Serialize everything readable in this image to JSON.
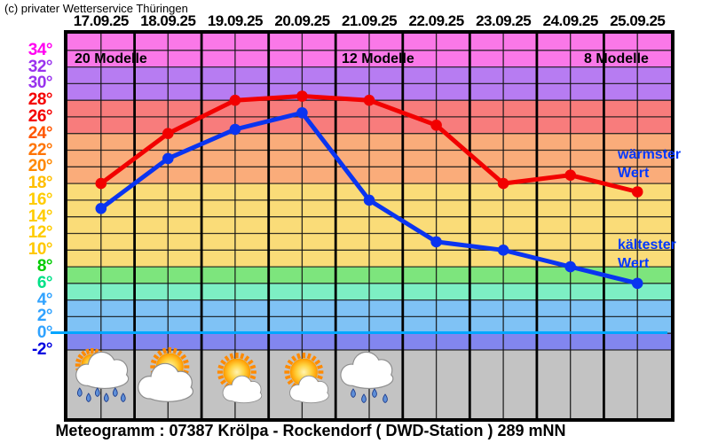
{
  "copyright": "(c) privater Wetterservice Thüringen",
  "caption": "Meteogramm : 07387 Krölpa - Rockendorf ( DWD-Station ) 289 mNN",
  "header": {
    "dates": [
      "17.09.25",
      "18.09.25",
      "19.09.25",
      "20.09.25",
      "21.09.25",
      "22.09.25",
      "23.09.25",
      "24.09.25",
      "25.09.25"
    ]
  },
  "annotations": {
    "models": [
      {
        "label": "20 Modelle",
        "x": 8
      },
      {
        "label": "12 Modelle",
        "x": 309
      },
      {
        "label": "8 Modelle",
        "x": 582
      }
    ],
    "warmest_label": {
      "line1": "wärmster",
      "line2": "Wert"
    },
    "coldest_label": {
      "line1": "kältester",
      "line2": "Wert"
    },
    "label_color": "#0038FF"
  },
  "chart_data": {
    "type": "line",
    "categories": [
      "17.09.25",
      "18.09.25",
      "19.09.25",
      "20.09.25",
      "21.09.25",
      "22.09.25",
      "23.09.25",
      "24.09.25",
      "25.09.25"
    ],
    "series": [
      {
        "name": "wärmster Wert",
        "color": "#F20000",
        "values": [
          18,
          24,
          28,
          28.5,
          28,
          25,
          18,
          19,
          17
        ]
      },
      {
        "name": "kältester Wert",
        "color": "#0A34F0",
        "values": [
          15,
          21,
          24.5,
          26.5,
          16,
          11,
          10,
          8,
          6
        ]
      }
    ],
    "ylim": [
      -2,
      36
    ],
    "y_tick_step": 2,
    "grid": true,
    "y_ticks": [
      {
        "value": 34,
        "color": "#FF00F0"
      },
      {
        "value": 32,
        "color": "#9933EE"
      },
      {
        "value": 30,
        "color": "#9933EE"
      },
      {
        "value": 28,
        "color": "#F50000"
      },
      {
        "value": 26,
        "color": "#F50000"
      },
      {
        "value": 24,
        "color": "#FF5500"
      },
      {
        "value": 22,
        "color": "#FF7300"
      },
      {
        "value": 20,
        "color": "#FF8800"
      },
      {
        "value": 18,
        "color": "#FFBE00"
      },
      {
        "value": 16,
        "color": "#FFCC00"
      },
      {
        "value": 14,
        "color": "#FFCC00"
      },
      {
        "value": 12,
        "color": "#FFCC00"
      },
      {
        "value": 10,
        "color": "#FFC800"
      },
      {
        "value": 8,
        "color": "#00CC00"
      },
      {
        "value": 6,
        "color": "#00E187"
      },
      {
        "value": 4,
        "color": "#2FA2FF"
      },
      {
        "value": 2,
        "color": "#2FA2FF"
      },
      {
        "value": 0,
        "color": "#2FA2FF"
      },
      {
        "value": -2,
        "color": "#0000E0"
      }
    ],
    "bands": [
      {
        "from": 36,
        "to": 32,
        "color": "#FA78E8"
      },
      {
        "from": 32,
        "to": 28,
        "color": "#B77CF2"
      },
      {
        "from": 28,
        "to": 24,
        "color": "#F87C7C"
      },
      {
        "from": 24,
        "to": 18,
        "color": "#FAAC7A"
      },
      {
        "from": 18,
        "to": 8,
        "color": "#FADC78"
      },
      {
        "from": 8,
        "to": 6,
        "color": "#7DE57D"
      },
      {
        "from": 6,
        "to": 4,
        "color": "#7DEFC4"
      },
      {
        "from": 4,
        "to": 0,
        "color": "#7FC2F5"
      },
      {
        "from": 0,
        "to": -2,
        "color": "#8286EF"
      }
    ],
    "zero_line_color": "#00A6FF",
    "icon_band_color": "#C3C3C3",
    "icons": [
      {
        "date": "17.09.25",
        "type": "sun-cloud-rain"
      },
      {
        "date": "18.09.25",
        "type": "sun-behind-cloud"
      },
      {
        "date": "19.09.25",
        "type": "sun-small-cloud"
      },
      {
        "date": "20.09.25",
        "type": "sun-small-cloud"
      },
      {
        "date": "21.09.25",
        "type": "cloud-rain"
      }
    ]
  }
}
